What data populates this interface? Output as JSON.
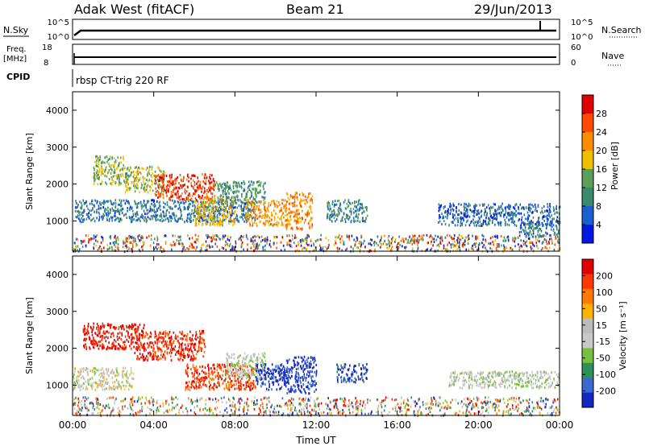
{
  "header": {
    "station": "Adak West (fitACF)",
    "beam": "Beam 21",
    "date": "29/Jun/2013"
  },
  "status_panels": {
    "nsky_label": "N.Sky",
    "nsky_ticks": [
      "10^5",
      "10^0"
    ],
    "nsearch_label": "N.Search",
    "nsearch_ticks": [
      "10^5",
      "10^0"
    ],
    "freq_label_1": "Freq.",
    "freq_label_2": "[MHz]",
    "freq_ticks": [
      "18",
      "8"
    ],
    "nave_label": "Nave",
    "nave_ticks": [
      "60",
      "0"
    ],
    "cpid_label": "CPID",
    "cpid_value": "rbsp CT-trig 220 RF"
  },
  "colors": {
    "power_scale": [
      "#0018e0",
      "#1a5fd0",
      "#3a8a70",
      "#5aa058",
      "#f0c000",
      "#ff8c00",
      "#ff4a00",
      "#e00000"
    ],
    "velocity_scale": [
      "#1028c0",
      "#3a6ad0",
      "#2f8f5a",
      "#7ac040",
      "#c8c8c8",
      "#bcbcbc",
      "#ffb000",
      "#ff7800",
      "#ff3800",
      "#e00000"
    ]
  },
  "chart_data": [
    {
      "type": "heatmap",
      "panel": "power",
      "ylabel": "Slant Range [km]",
      "x_range_hours": [
        0,
        24
      ],
      "ylim": [
        180,
        4500
      ],
      "y_ticks": [
        "1000",
        "2000",
        "3000",
        "4000"
      ],
      "x_ticks": [
        "00:00",
        "04:00",
        "08:00",
        "12:00",
        "16:00",
        "20:00",
        "00:00"
      ],
      "colorbar_label": "Power [dB]",
      "colorbar_ticks": [
        "28",
        "24",
        "20",
        "16",
        "12",
        "8",
        "4"
      ],
      "regions": [
        {
          "t0": 0.0,
          "t1": 24.0,
          "r0": 200,
          "r1": 650,
          "level": 0.55,
          "mixed": true
        },
        {
          "t0": 0.1,
          "t1": 9.0,
          "r0": 1000,
          "r1": 1600,
          "level": 0.25
        },
        {
          "t0": 1.0,
          "t1": 2.5,
          "r0": 2000,
          "r1": 2800,
          "level": 0.45
        },
        {
          "t0": 2.5,
          "t1": 4.5,
          "r0": 1800,
          "r1": 2500,
          "level": 0.5
        },
        {
          "t0": 4.0,
          "t1": 7.0,
          "r0": 1600,
          "r1": 2300,
          "level": 0.85
        },
        {
          "t0": 6.0,
          "t1": 8.0,
          "r0": 900,
          "r1": 1700,
          "level": 0.6
        },
        {
          "t0": 7.0,
          "t1": 9.5,
          "r0": 1500,
          "r1": 2100,
          "level": 0.35
        },
        {
          "t0": 8.5,
          "t1": 10.5,
          "r0": 900,
          "r1": 1600,
          "level": 0.65
        },
        {
          "t0": 10.5,
          "t1": 11.8,
          "r0": 800,
          "r1": 1800,
          "level": 0.7
        },
        {
          "t0": 12.5,
          "t1": 14.5,
          "r0": 1000,
          "r1": 1600,
          "level": 0.3
        },
        {
          "t0": 18.0,
          "t1": 24.0,
          "r0": 900,
          "r1": 1500,
          "level": 0.2
        },
        {
          "t0": 22.0,
          "t1": 24.0,
          "r0": 600,
          "r1": 1000,
          "level": 0.25
        }
      ]
    },
    {
      "type": "heatmap",
      "panel": "velocity",
      "ylabel": "Slant Range [km]",
      "xlabel": "Time UT",
      "x_range_hours": [
        0,
        24
      ],
      "ylim": [
        180,
        4500
      ],
      "y_ticks": [
        "1000",
        "2000",
        "3000",
        "4000"
      ],
      "x_ticks": [
        "00:00",
        "04:00",
        "08:00",
        "12:00",
        "16:00",
        "20:00",
        "00:00"
      ],
      "colorbar_label": "Velocity [m s⁻¹]",
      "colorbar_ticks": [
        "200",
        "100",
        "50",
        "15",
        "-15",
        "-50",
        "-100",
        "-200"
      ],
      "regions": [
        {
          "t0": 0.0,
          "t1": 24.0,
          "r0": 200,
          "r1": 700,
          "level": 0.45,
          "mixed": true
        },
        {
          "t0": 0.5,
          "t1": 3.5,
          "r0": 2000,
          "r1": 2700,
          "level": 0.95
        },
        {
          "t0": 3.0,
          "t1": 6.5,
          "r0": 1700,
          "r1": 2500,
          "level": 0.9
        },
        {
          "t0": 5.5,
          "t1": 9.0,
          "r0": 900,
          "r1": 1600,
          "level": 0.85
        },
        {
          "t0": 0.0,
          "t1": 3.0,
          "r0": 900,
          "r1": 1500,
          "level": 0.5
        },
        {
          "t0": 7.5,
          "t1": 9.5,
          "r0": 1200,
          "r1": 1900,
          "level": 0.45
        },
        {
          "t0": 9.0,
          "t1": 10.5,
          "r0": 900,
          "r1": 1600,
          "level": 0.05
        },
        {
          "t0": 10.5,
          "t1": 12.0,
          "r0": 800,
          "r1": 1800,
          "level": 0.05
        },
        {
          "t0": 13.0,
          "t1": 14.5,
          "r0": 1100,
          "r1": 1600,
          "level": 0.1
        },
        {
          "t0": 18.5,
          "t1": 24.0,
          "r0": 950,
          "r1": 1400,
          "level": 0.45
        }
      ]
    }
  ]
}
